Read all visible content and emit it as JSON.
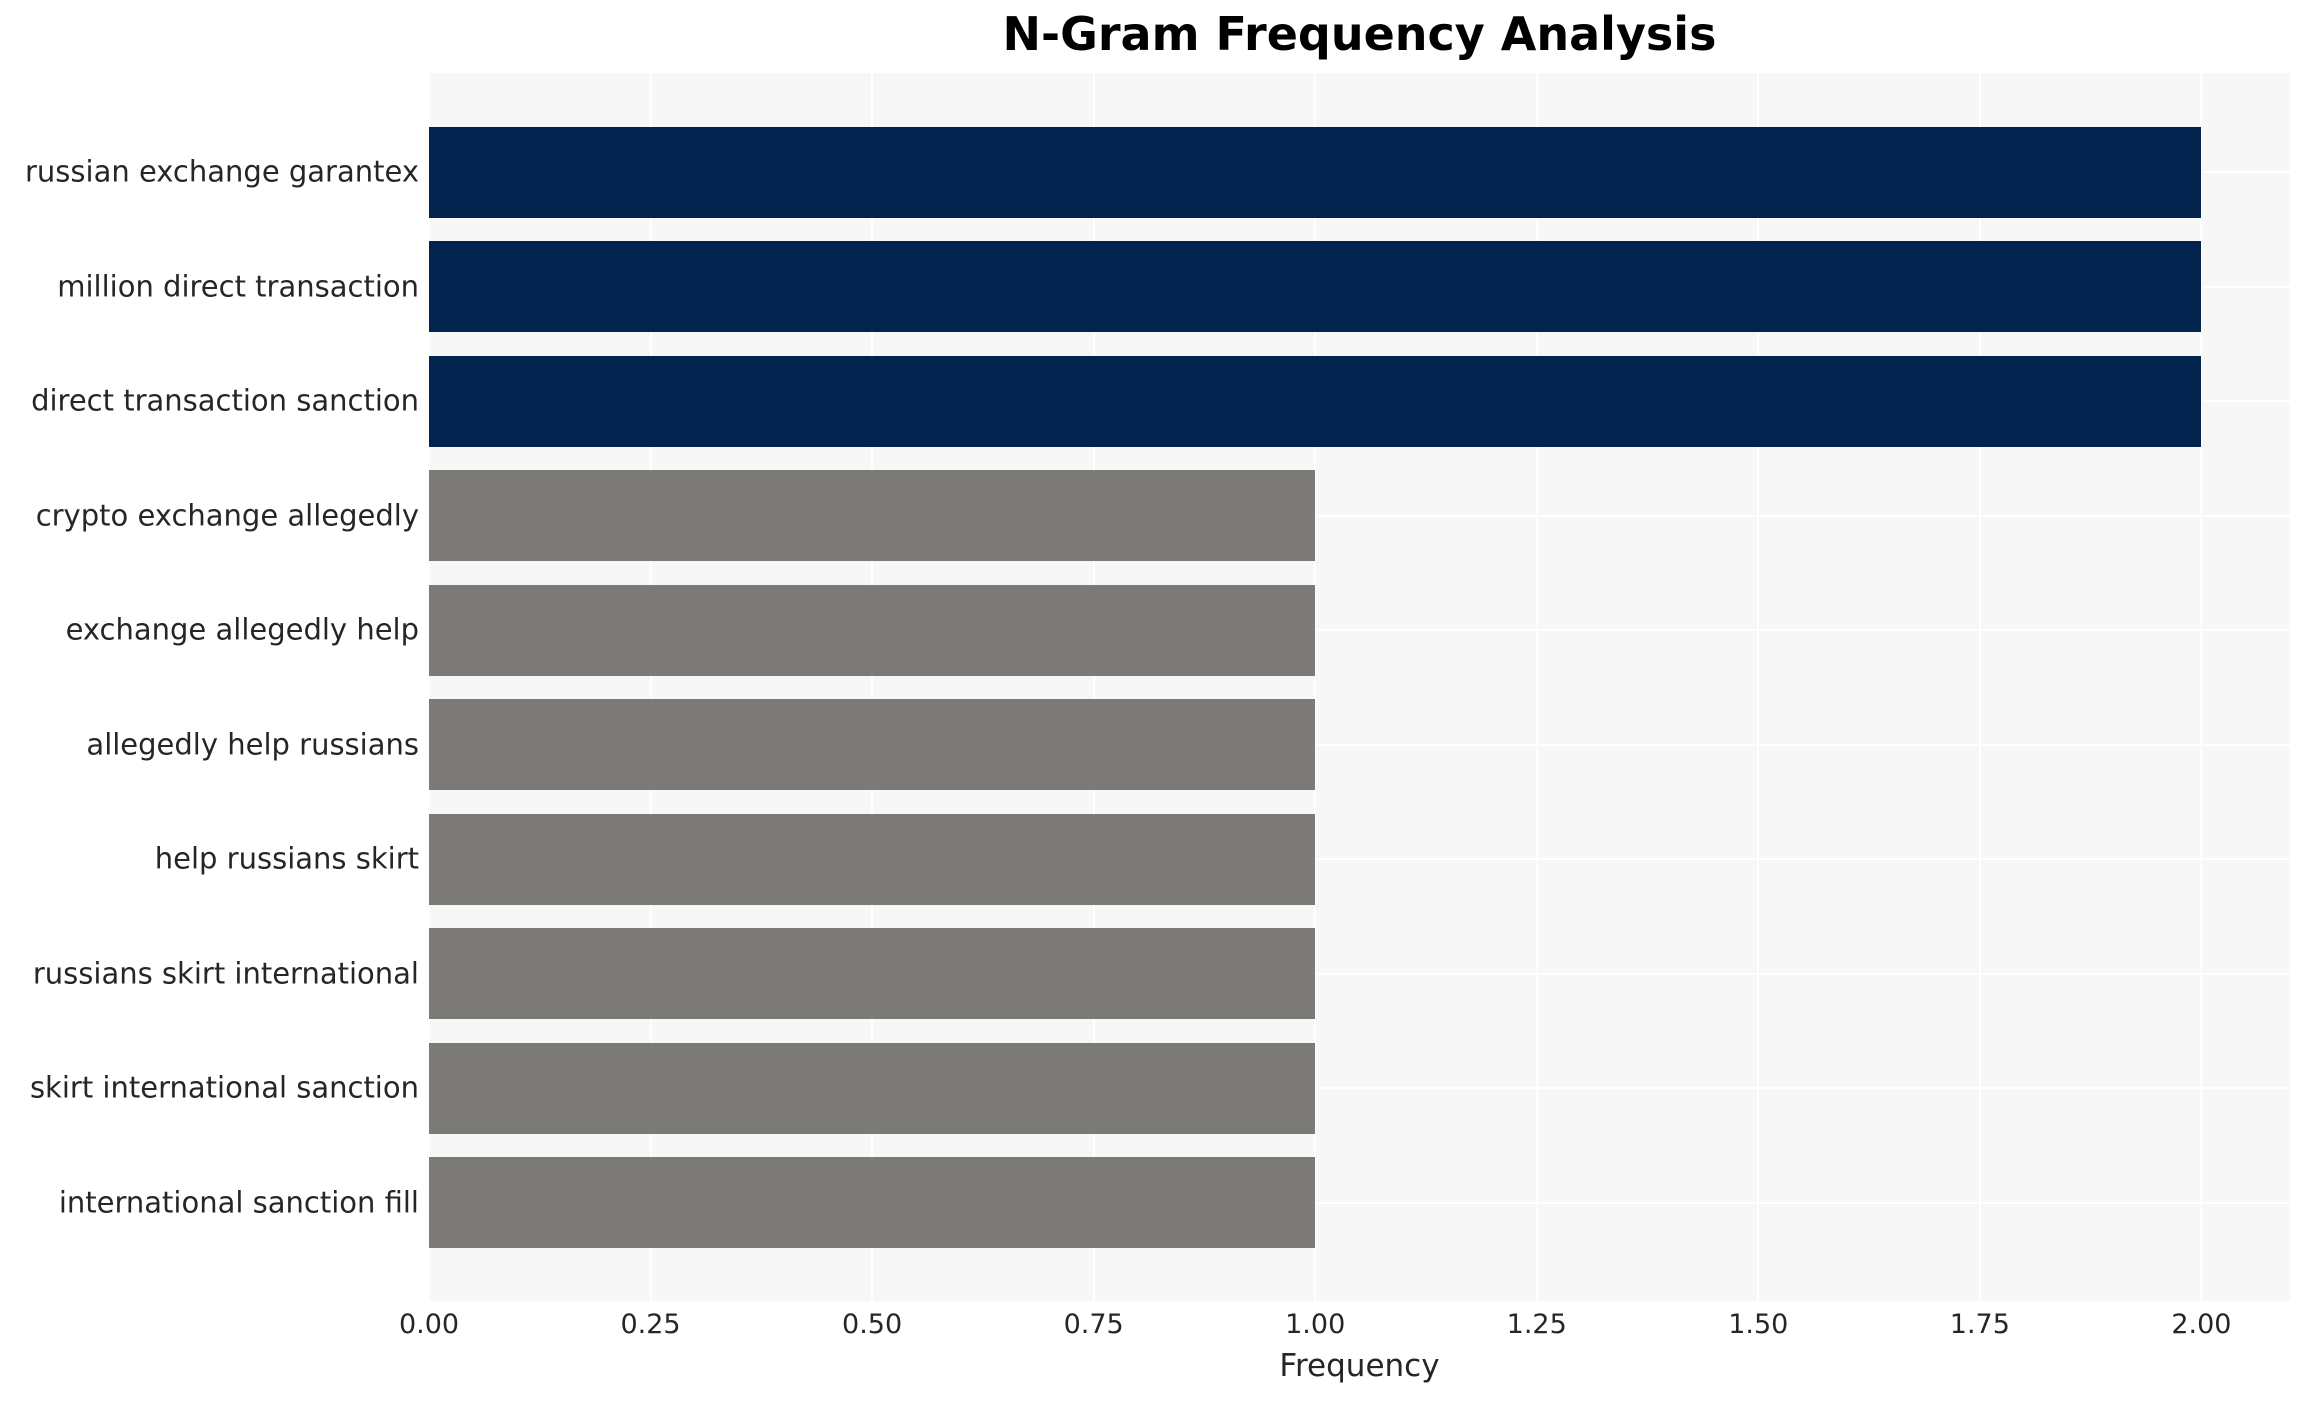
{
  "figure": {
    "title": "N-Gram Frequency Analysis",
    "xlabel": "Frequency"
  },
  "chart_data": {
    "type": "bar",
    "orientation": "horizontal",
    "title": "N-Gram Frequency Analysis",
    "xlabel": "Frequency",
    "ylabel": "",
    "categories": [
      "russian exchange garantex",
      "million direct transaction",
      "direct transaction sanction",
      "crypto exchange allegedly",
      "exchange allegedly help",
      "allegedly help russians",
      "help russians skirt",
      "russians skirt international",
      "skirt international sanction",
      "international sanction fill"
    ],
    "values": [
      2,
      2,
      2,
      1,
      1,
      1,
      1,
      1,
      1,
      1
    ],
    "bar_colors": [
      "#02234e",
      "#02234e",
      "#02234e",
      "#7b7a77",
      "#7b7a77",
      "#7b7a77",
      "#7b7a77",
      "#7b7a77",
      "#7b7a77",
      "#7b7a77"
    ],
    "xlim": [
      0,
      2.1
    ],
    "xticks": [
      {
        "value": 0.0,
        "label": "0.00"
      },
      {
        "value": 0.25,
        "label": "0.25"
      },
      {
        "value": 0.5,
        "label": "0.50"
      },
      {
        "value": 0.75,
        "label": "0.75"
      },
      {
        "value": 1.0,
        "label": "1.00"
      },
      {
        "value": 1.25,
        "label": "1.25"
      },
      {
        "value": 1.5,
        "label": "1.50"
      },
      {
        "value": 1.75,
        "label": "1.75"
      },
      {
        "value": 2.0,
        "label": "2.00"
      }
    ],
    "grid": true,
    "legend_position": "none",
    "styles": {
      "plot_background": "#f7f7f7",
      "gridline_color": "#ffffff",
      "highlight_color": "#02234e",
      "default_color": "#7b7a77",
      "text_color": "#262626",
      "title_color": "#000000"
    }
  }
}
